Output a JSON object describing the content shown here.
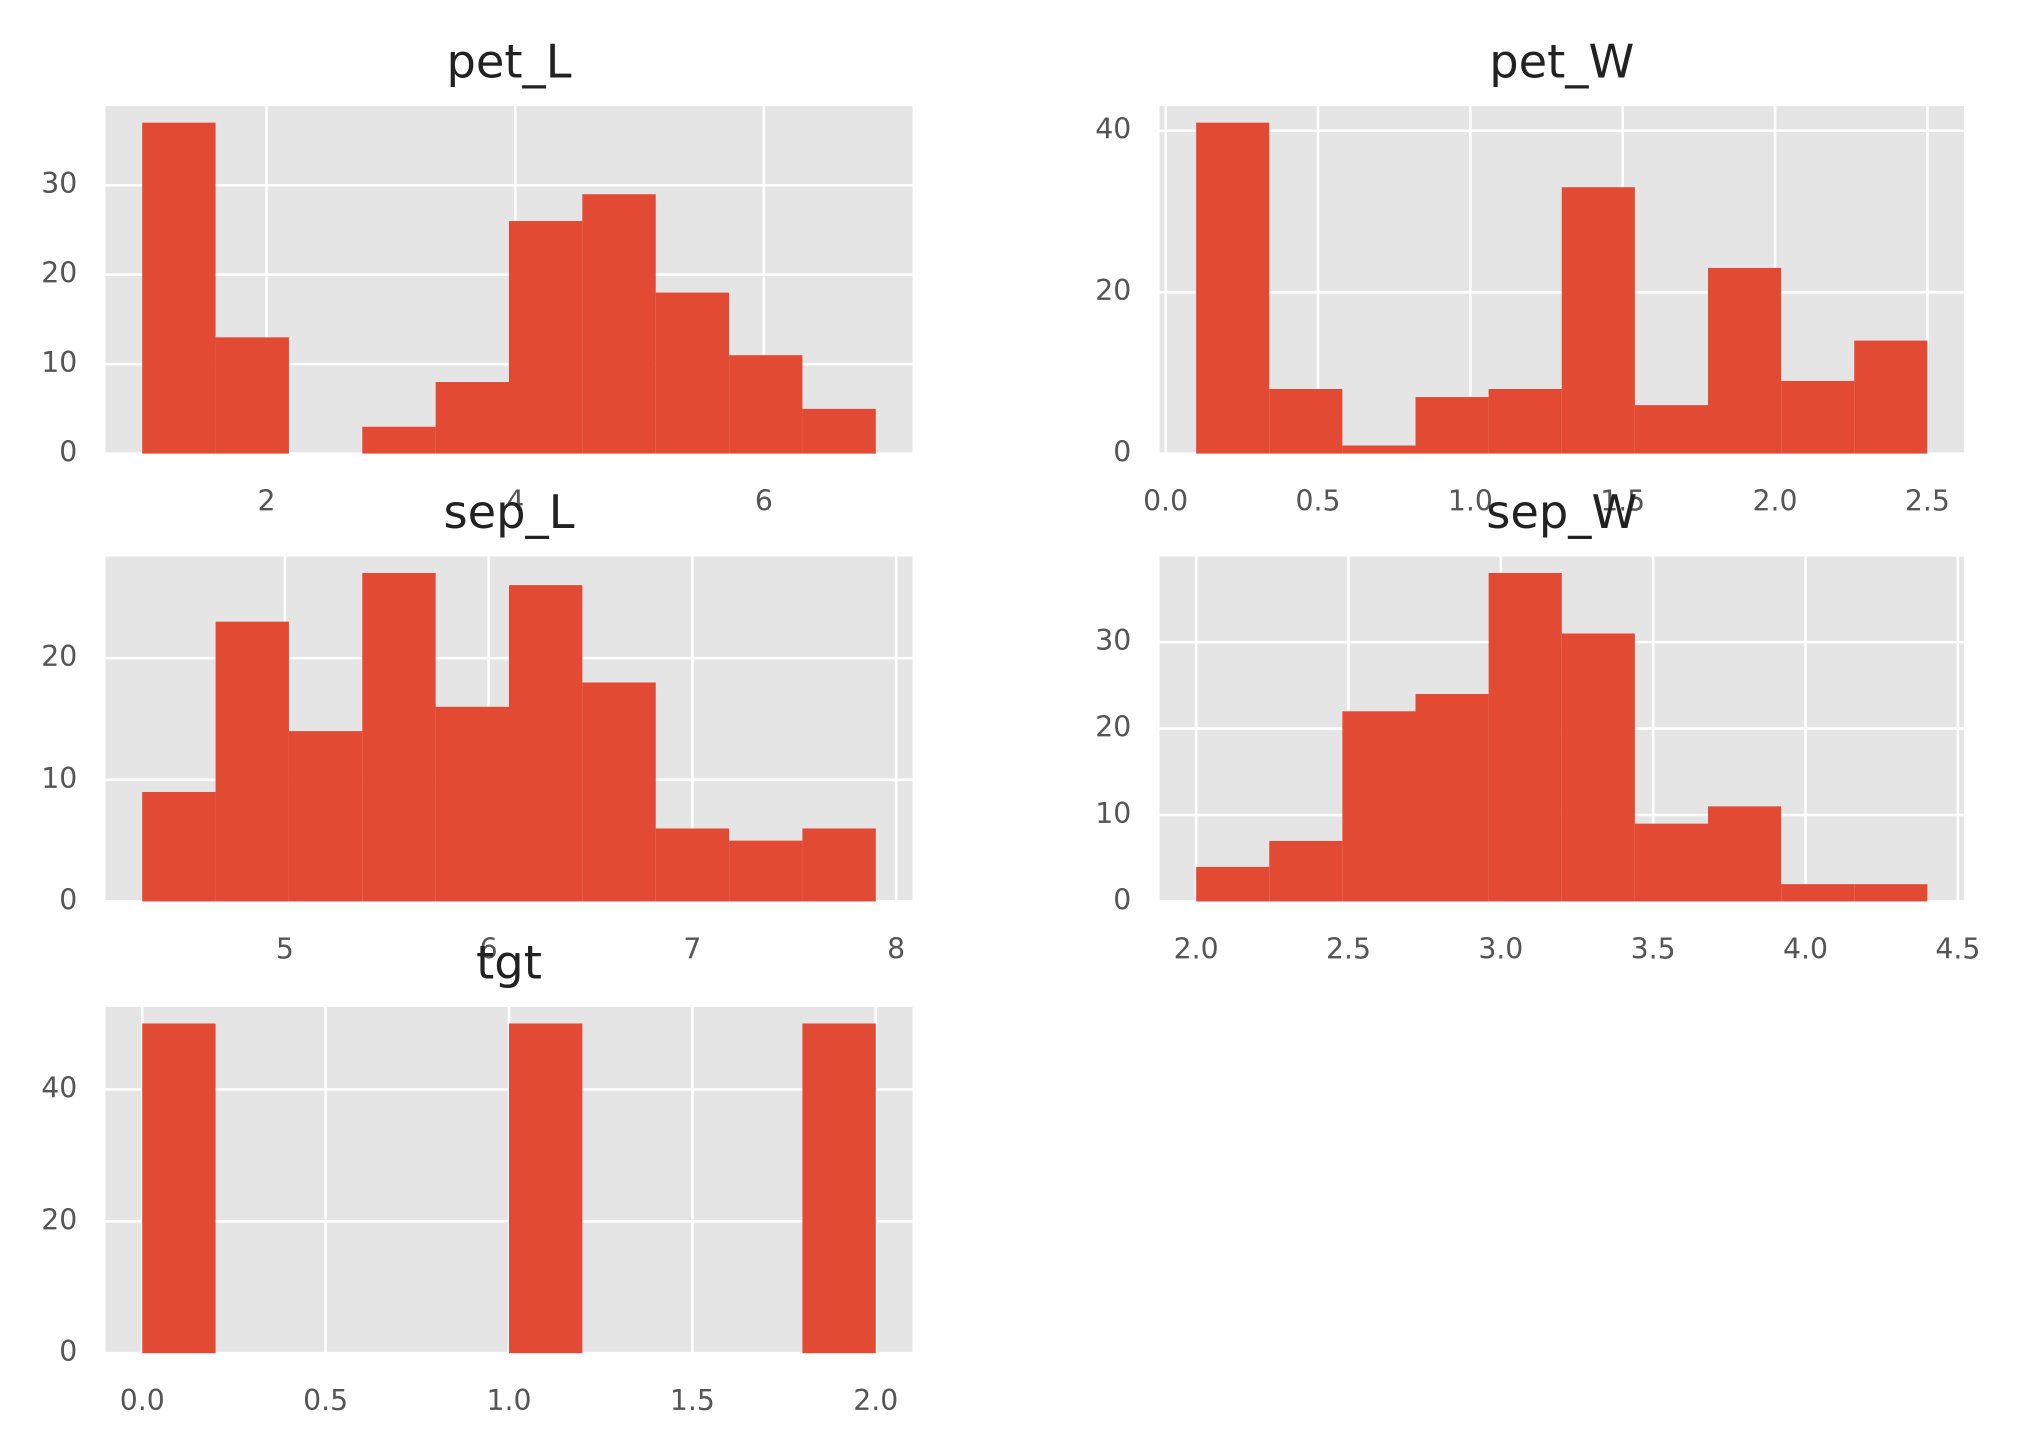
{
  "chart_data": [
    {
      "type": "histogram",
      "title": "pet_L",
      "color": "#e24a33",
      "grid": true,
      "bins": [
        1.0,
        1.59,
        2.18,
        2.77,
        3.36,
        3.95,
        4.54,
        5.13,
        5.72,
        6.31,
        6.9
      ],
      "values": [
        37,
        13,
        0,
        3,
        8,
        26,
        29,
        18,
        11,
        5
      ],
      "xlim": [
        0.705,
        7.195
      ],
      "xticks": [
        2,
        4,
        6
      ],
      "ylim": [
        0,
        38.85
      ],
      "yticks": [
        0,
        10,
        20,
        30
      ]
    },
    {
      "type": "histogram",
      "title": "pet_W",
      "color": "#e24a33",
      "grid": true,
      "bins": [
        0.1,
        0.34,
        0.58,
        0.82,
        1.06,
        1.3,
        1.54,
        1.78,
        2.02,
        2.26,
        2.5
      ],
      "values": [
        41,
        8,
        1,
        7,
        8,
        33,
        6,
        23,
        9,
        14
      ],
      "xlim": [
        -0.02,
        2.62
      ],
      "xticks": [
        {
          "value": 0,
          "label": "0.0"
        },
        0.5,
        {
          "value": 1,
          "label": "1.0"
        },
        1.5,
        {
          "value": 2,
          "label": "2.0"
        },
        2.5
      ],
      "ylim": [
        0,
        43.05
      ],
      "yticks": [
        0,
        20,
        40
      ]
    },
    {
      "type": "histogram",
      "title": "sep_L",
      "color": "#e24a33",
      "grid": true,
      "bins": [
        4.3,
        4.66,
        5.02,
        5.38,
        5.74,
        6.1,
        6.46,
        6.82,
        7.18,
        7.54,
        7.9
      ],
      "values": [
        9,
        23,
        14,
        27,
        16,
        26,
        18,
        6,
        5,
        6
      ],
      "xlim": [
        4.12,
        8.08
      ],
      "xticks": [
        5,
        6,
        7,
        8
      ],
      "ylim": [
        0,
        28.35
      ],
      "yticks": [
        0,
        10,
        20
      ]
    },
    {
      "type": "histogram",
      "title": "sep_W",
      "color": "#e24a33",
      "grid": true,
      "bins": [
        2.0,
        2.24,
        2.48,
        2.72,
        2.96,
        3.2,
        3.44,
        3.68,
        3.92,
        4.16,
        4.4
      ],
      "values": [
        4,
        7,
        22,
        24,
        38,
        31,
        9,
        11,
        2,
        2
      ],
      "xlim": [
        1.88,
        4.52
      ],
      "xticks": [
        {
          "value": 2,
          "label": "2.0"
        },
        2.5,
        {
          "value": 3,
          "label": "3.0"
        },
        3.5,
        {
          "value": 4,
          "label": "4.0"
        },
        4.5
      ],
      "ylim": [
        0,
        39.9
      ],
      "yticks": [
        0,
        10,
        20,
        30
      ]
    },
    {
      "type": "histogram",
      "title": "tgt",
      "color": "#e24a33",
      "grid": true,
      "bins": [
        0,
        0.2,
        0.4,
        0.6,
        0.8,
        1.0,
        1.2,
        1.4,
        1.6,
        1.8,
        2.0
      ],
      "values": [
        50,
        0,
        0,
        0,
        0,
        50,
        0,
        0,
        0,
        50
      ],
      "xlim": [
        -0.1,
        2.1
      ],
      "xticks": [
        {
          "value": 0,
          "label": "0.0"
        },
        0.5,
        {
          "value": 1,
          "label": "1.0"
        },
        1.5,
        {
          "value": 2,
          "label": "2.0"
        }
      ],
      "ylim": [
        0,
        52.5
      ],
      "yticks": [
        0,
        20,
        40
      ]
    }
  ]
}
